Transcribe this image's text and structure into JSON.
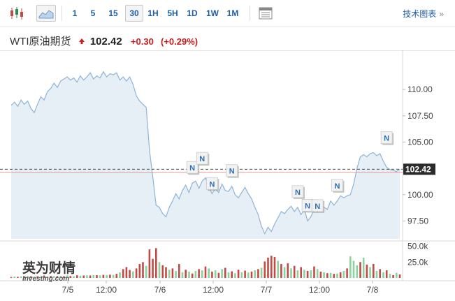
{
  "toolbar": {
    "periods": [
      "1",
      "5",
      "15",
      "30",
      "1H",
      "5H",
      "1D",
      "1W",
      "1M"
    ],
    "active_period": "30",
    "tech_chart_label": "技术图表",
    "tech_chart_arrow": "»",
    "icons": [
      "candlestick-icon",
      "area-chart-icon",
      "table-icon"
    ]
  },
  "quote": {
    "name": "WTI原油期货",
    "price": "102.42",
    "change": "+0.30",
    "change_pct": "(+0.29%)",
    "direction_color": "#d01c1c"
  },
  "watermark": {
    "main": "英为财情",
    "sub": "Investing.com"
  },
  "chart_data": {
    "type": "area",
    "x_labels": [
      "7/5",
      "12:00",
      "7/6",
      "12:00",
      "7/7",
      "12:00",
      "7/8"
    ],
    "y_ticks": [
      "110.00",
      "107.50",
      "105.00",
      "102.50",
      "100.00",
      "97.50"
    ],
    "ylim": [
      95.8,
      113.2
    ],
    "current_price": 102.42,
    "prev_close": 102.12,
    "series": [
      {
        "values": [
          108.5,
          108.8,
          108.4,
          109.0,
          108.6,
          108.9,
          108.2,
          107.8,
          108.6,
          109.3,
          109.0,
          109.8,
          110.1,
          110.6,
          110.2,
          110.8,
          111.0,
          111.2,
          110.9,
          111.1,
          110.7,
          111.3,
          110.9,
          111.2,
          111.6,
          111.0,
          111.3,
          111.1,
          111.7,
          111.2,
          111.5,
          111.4,
          111.6,
          110.9,
          111.2,
          110.8,
          111.2,
          110.5,
          109.4,
          108.9,
          108.6,
          108.3,
          104.2,
          101.7,
          99.0,
          98.8,
          98.2,
          97.9,
          98.8,
          99.4,
          100.1,
          99.6,
          100.4,
          100.9,
          100.2,
          101.1,
          101.3,
          100.6,
          101.3,
          101.6,
          100.7,
          100.1,
          100.6,
          100.2,
          101.0,
          100.4,
          100.3,
          100.8,
          100.0,
          99.7,
          100.2,
          100.7,
          100.1,
          99.6,
          98.8,
          98.1,
          97.0,
          96.3,
          96.9,
          96.5,
          97.2,
          97.8,
          98.4,
          98.2,
          98.6,
          98.9,
          98.4,
          98.8,
          98.1,
          98.6,
          97.5,
          97.9,
          98.6,
          98.4,
          99.1,
          98.8,
          98.6,
          99.4,
          99.0,
          99.4,
          99.9,
          99.7,
          99.9,
          100.0,
          101.0,
          102.5,
          103.6,
          103.8,
          103.6,
          103.9,
          104.0,
          103.7,
          103.9,
          103.2,
          102.6,
          102.4,
          102.3,
          102.2,
          102.42
        ]
      }
    ],
    "volume": {
      "y_ticks": [
        "50.0k",
        "25.0k"
      ],
      "ylim": [
        0,
        55000
      ],
      "values": [
        1500,
        2200,
        1800,
        2500,
        2000,
        3000,
        2600,
        1900,
        2800,
        2100,
        3500,
        2400,
        3100,
        2700,
        2900,
        3300,
        2600,
        3800,
        3000,
        2800,
        4200,
        3600,
        3900,
        4100,
        3800,
        4500,
        4300,
        4000,
        4800,
        4600,
        5200,
        4800,
        6500,
        8800,
        14000,
        17000,
        12500,
        10500,
        15000,
        22000,
        25000,
        19000,
        45000,
        30000,
        47000,
        25000,
        20000,
        17000,
        13000,
        15000,
        11000,
        22000,
        9000,
        13000,
        10000,
        7000,
        11000,
        14000,
        12000,
        18000,
        15000,
        10000,
        12000,
        8000,
        14000,
        16000,
        9000,
        10500,
        7500,
        13000,
        9000,
        11500,
        8500,
        10000,
        12000,
        14000,
        16000,
        26000,
        32000,
        35000,
        33000,
        27000,
        22000,
        17000,
        23000,
        15000,
        19000,
        12000,
        17000,
        13000,
        11000,
        12000,
        18000,
        14000,
        10000,
        9000,
        7500,
        8000,
        6500,
        7000,
        9000,
        11000,
        15000,
        34000,
        27000,
        20000,
        25000,
        32000,
        21000,
        17000,
        22000,
        11000,
        14000,
        9000,
        12000,
        6500,
        4500,
        8000,
        5500
      ],
      "colors": [
        "r",
        "g",
        "r",
        "g",
        "r",
        "g",
        "r",
        "g",
        "r",
        "g",
        "r",
        "g",
        "r",
        "g",
        "r",
        "g",
        "r",
        "g",
        "r",
        "g",
        "r",
        "g",
        "r",
        "g",
        "r",
        "g",
        "r",
        "g",
        "r",
        "g",
        "r",
        "g",
        "r",
        "g",
        "r",
        "r",
        "r",
        "g",
        "r",
        "r",
        "r",
        "g",
        "r",
        "r",
        "r",
        "g",
        "r",
        "r",
        "g",
        "r",
        "g",
        "r",
        "g",
        "r",
        "g",
        "r",
        "g",
        "r",
        "g",
        "r",
        "g",
        "r",
        "g",
        "r",
        "g",
        "r",
        "g",
        "r",
        "g",
        "r",
        "g",
        "r",
        "g",
        "r",
        "g",
        "r",
        "g",
        "r",
        "r",
        "r",
        "r",
        "g",
        "r",
        "g",
        "r",
        "g",
        "r",
        "g",
        "r",
        "g",
        "r",
        "g",
        "r",
        "g",
        "r",
        "g",
        "r",
        "g",
        "r",
        "g",
        "r",
        "g",
        "r",
        "g",
        "g",
        "g",
        "r",
        "g",
        "r",
        "g",
        "r",
        "g",
        "r",
        "g",
        "r",
        "g",
        "r",
        "g",
        "r"
      ]
    },
    "news_markers": [
      {
        "label": "N",
        "index": 55,
        "dy": 0
      },
      {
        "label": "N",
        "index": 58,
        "dy": -10
      },
      {
        "label": "N",
        "index": 61,
        "dy": 8
      },
      {
        "label": "N",
        "index": 67,
        "dy": 0
      },
      {
        "label": "N",
        "index": 87,
        "dy": 0
      },
      {
        "label": "N",
        "index": 90,
        "dy": 0
      },
      {
        "label": "N",
        "index": 93,
        "dy": 14
      },
      {
        "label": "N",
        "index": 99,
        "dy": 0
      },
      {
        "label": "N",
        "index": 114,
        "dy": -20
      }
    ],
    "colors": {
      "line": "#8fb4d6",
      "area": "#e6eef6",
      "vol_red": "#c24a44",
      "vol_green": "#8ed1a0",
      "price_tag": "#2b2b2b",
      "prev_close_line": "#e28a8a"
    }
  }
}
